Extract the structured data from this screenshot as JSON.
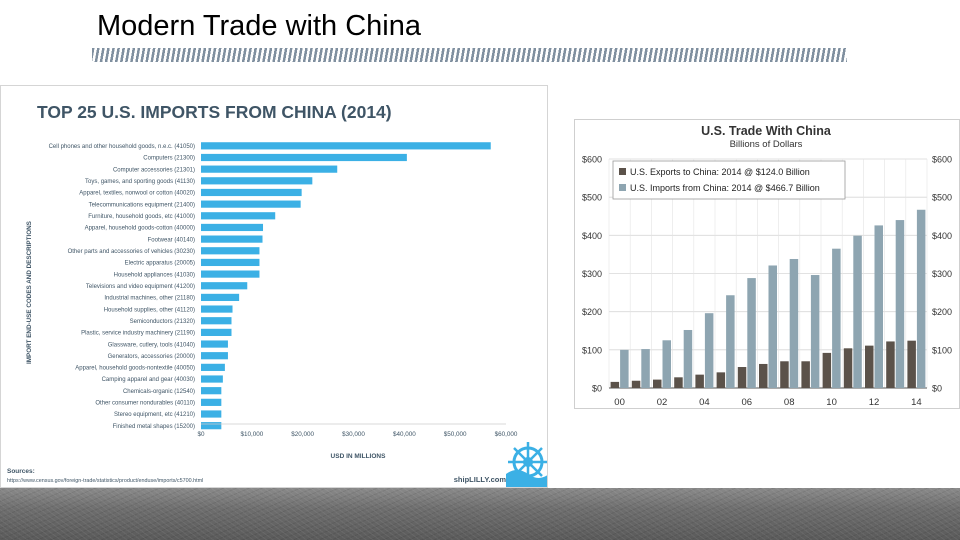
{
  "slide": {
    "title": "Modern Trade with China"
  },
  "chart_data": [
    {
      "type": "bar",
      "orientation": "horizontal",
      "title": "TOP 25 U.S. IMPORTS FROM CHINA (2014)",
      "ylabel": "IMPORT END-USE CODES AND DESCRIPTIONS",
      "xlabel": "USD IN MILLIONS",
      "x_ticks": [
        "$0",
        "$10,000",
        "$20,000",
        "$30,000",
        "$40,000",
        "$50,000",
        "$60,000"
      ],
      "xlim": [
        0,
        60000
      ],
      "categories": [
        "Cell phones and other household goods, n.e.c. (41050)",
        "Computers (21300)",
        "Computer accessories (21301)",
        "Toys, games, and sporting goods (41130)",
        "Apparel, textiles, nonwool or cotton (40020)",
        "Telecommunications equipment (21400)",
        "Furniture, household goods, etc (41000)",
        "Apparel, household goods-cotton (40000)",
        "Footwear (40140)",
        "Other parts and accessories of vehicles (30230)",
        "Electric apparatus (20005)",
        "Household appliances (41030)",
        "Televisions and video equipment (41200)",
        "Industrial machines, other (21180)",
        "Household supplies, other (41120)",
        "Semiconductors (21320)",
        "Plastic, service industry machinery (21190)",
        "Glassware, cutlery, tools (41040)",
        "Generators, accessories (20000)",
        "Apparel, household goods-nontextile (40050)",
        "Camping apparel and gear (40030)",
        "Chemicals-organic (12540)",
        "Other consumer nondurables (40110)",
        "Stereo equipment, etc (41210)",
        "Finished metal shapes (15200)"
      ],
      "values": [
        57000,
        40500,
        26800,
        21900,
        19800,
        19600,
        14600,
        12200,
        12100,
        11500,
        11500,
        11500,
        9100,
        7500,
        6200,
        6000,
        6000,
        5300,
        5300,
        4700,
        4300,
        4000,
        4000,
        4000,
        4000
      ],
      "color": "#3bb0e5",
      "sources_label": "Sources:",
      "sources_url": "https://www.census.gov/foreign-trade/statistics/product/enduse/imports/c5700.html",
      "brand": "shipLILLY.com"
    },
    {
      "type": "bar",
      "title": "U.S. Trade With China",
      "subtitle": "Billions of Dollars",
      "years": [
        2000,
        2001,
        2002,
        2003,
        2004,
        2005,
        2006,
        2007,
        2008,
        2009,
        2010,
        2011,
        2012,
        2013,
        2014
      ],
      "x_ticks": [
        "00",
        "02",
        "04",
        "06",
        "08",
        "10",
        "12",
        "14"
      ],
      "y_ticks": [
        "$0",
        "$100",
        "$200",
        "$300",
        "$400",
        "$500",
        "$600"
      ],
      "ylim": [
        0,
        600
      ],
      "series": [
        {
          "name": "U.S. Exports to China: 2014 @ $124.0 Billion",
          "color": "#5b524a",
          "values": [
            16,
            19,
            22,
            28,
            35,
            41,
            55,
            63,
            70,
            70,
            92,
            104,
            111,
            122,
            124
          ]
        },
        {
          "name": "U.S. Imports from China: 2014 @ $466.7 Billion",
          "color": "#8ea5b1",
          "values": [
            100,
            102,
            125,
            152,
            196,
            243,
            288,
            321,
            338,
            296,
            365,
            399,
            426,
            440,
            467
          ]
        }
      ],
      "grid": true,
      "legend": "top-left"
    }
  ]
}
